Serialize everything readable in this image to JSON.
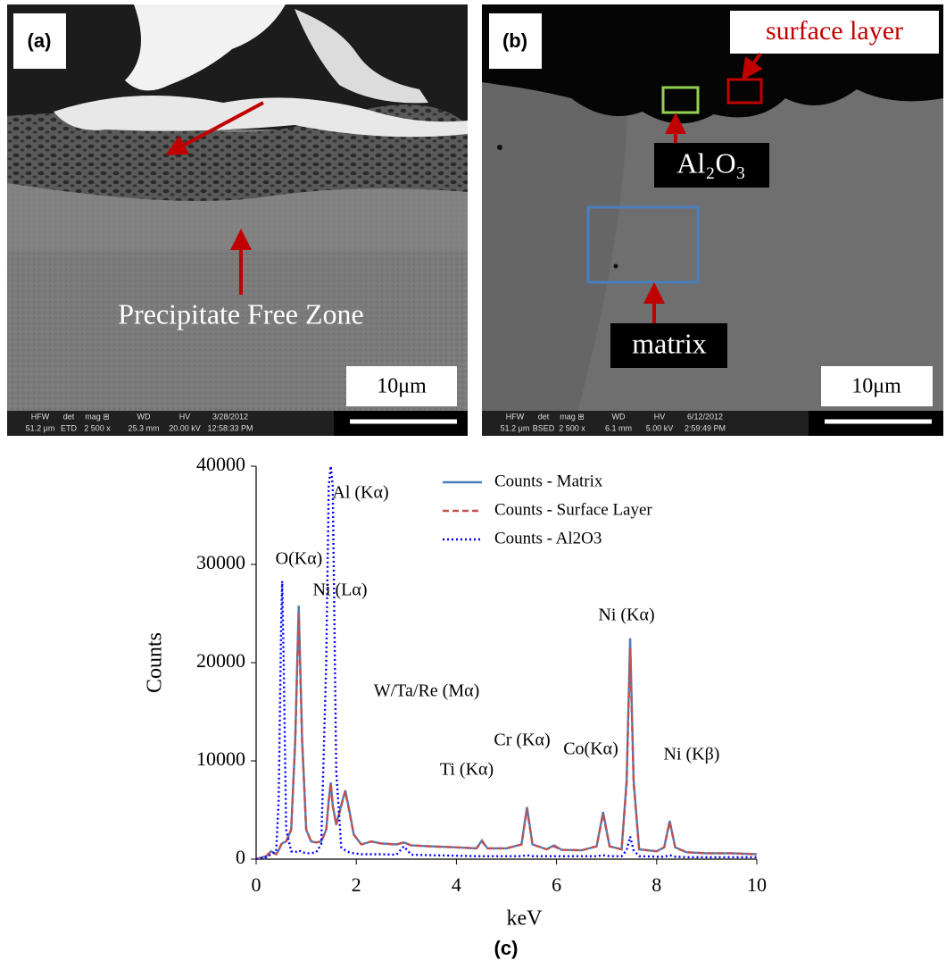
{
  "panels": [
    {
      "label": "(a)",
      "annotations": [
        "Precipitate Free Zone"
      ],
      "scale_bar": "10μm",
      "info_bar": {
        "headers": [
          "HFW",
          "det",
          "mag ⊞",
          "WD",
          "HV",
          "3/28/2012"
        ],
        "values": [
          "51.2 μm",
          "ETD",
          "2 500 x",
          "25.3 mm",
          "20.00 kV",
          "12:58:33 PM"
        ]
      }
    },
    {
      "label": "(b)",
      "annotations": [
        "surface layer",
        "Al₂O₃",
        "matrix"
      ],
      "scale_bar": "10μm",
      "info_bar": {
        "headers": [
          "HFW",
          "det",
          "mag ⊞",
          "WD",
          "HV",
          "6/12/2012"
        ],
        "values": [
          "51.2 μm",
          "BSED",
          "2 500 x",
          "6.1 mm",
          "5.00 kV",
          "2:59:49 PM"
        ]
      }
    }
  ],
  "chart_data": {
    "type": "line",
    "x_label": "keV",
    "y_label": "Counts",
    "xlim": [
      0,
      10
    ],
    "xticks": [
      0,
      2,
      4,
      6,
      8,
      10
    ],
    "ylim": [
      0,
      40000
    ],
    "yticks": [
      0,
      10000,
      20000,
      30000,
      40000
    ],
    "legend": "top-right",
    "annotations": [
      "O(Kα)",
      "Al (Kα)",
      "Ni (Lα)",
      "W/Ta/Re  (Mα)",
      "Ti (Kα)",
      "Cr (Kα)",
      "Co(Kα)",
      "Ni (Kα)",
      "Ni (Kβ)"
    ],
    "x": [
      0,
      0.2,
      0.3,
      0.4,
      0.45,
      0.5,
      0.52,
      0.55,
      0.6,
      0.7,
      0.78,
      0.85,
      0.92,
      1.0,
      1.1,
      1.2,
      1.3,
      1.4,
      1.45,
      1.49,
      1.53,
      1.6,
      1.7,
      1.78,
      1.86,
      1.95,
      2.1,
      2.3,
      2.5,
      2.8,
      2.95,
      3.1,
      3.5,
      4.0,
      4.4,
      4.51,
      4.62,
      5.0,
      5.3,
      5.41,
      5.52,
      5.8,
      5.95,
      6.1,
      6.5,
      6.8,
      6.93,
      7.06,
      7.3,
      7.4,
      7.47,
      7.54,
      7.65,
      8.0,
      8.15,
      8.26,
      8.37,
      8.6,
      9.0,
      9.5,
      10
    ],
    "series": [
      {
        "name": "Counts - Matrix",
        "color": "#4a7ebb",
        "dash": "solid",
        "values": [
          0,
          300,
          800,
          500,
          900,
          1500,
          1600,
          1700,
          1800,
          3000,
          12000,
          25800,
          12000,
          3000,
          1800,
          1700,
          1800,
          3000,
          6000,
          7800,
          5500,
          3500,
          5500,
          7000,
          5000,
          2500,
          1500,
          1800,
          1600,
          1500,
          1700,
          1400,
          1300,
          1200,
          1100,
          1900,
          1100,
          1100,
          1500,
          5300,
          1500,
          1000,
          1400,
          950,
          900,
          1300,
          4800,
          1300,
          1000,
          8000,
          22500,
          8000,
          1000,
          800,
          1200,
          3900,
          1200,
          700,
          600,
          600,
          500
        ]
      },
      {
        "name": "Counts - Surface Layer",
        "color": "#c0504d",
        "dash": "dashed",
        "values": [
          0,
          300,
          800,
          500,
          900,
          1500,
          1600,
          1700,
          1800,
          3000,
          11800,
          25000,
          11800,
          3000,
          1800,
          1700,
          1800,
          3000,
          5900,
          7700,
          5400,
          3500,
          5400,
          6900,
          4900,
          2500,
          1500,
          1800,
          1600,
          1500,
          1700,
          1400,
          1300,
          1200,
          1100,
          1800,
          1100,
          1100,
          1500,
          5100,
          1500,
          1000,
          1300,
          950,
          900,
          1300,
          4600,
          1300,
          1000,
          7700,
          21500,
          7700,
          1000,
          800,
          1200,
          3800,
          1200,
          700,
          600,
          600,
          500
        ]
      },
      {
        "name": "Counts - Al2O3",
        "color": "#0000ff",
        "dash": "dotted",
        "values": [
          0,
          200,
          500,
          800,
          6000,
          24000,
          28300,
          20000,
          3000,
          800,
          700,
          900,
          700,
          600,
          600,
          700,
          1500,
          20000,
          38000,
          40000,
          38000,
          9000,
          1200,
          900,
          700,
          600,
          500,
          500,
          500,
          450,
          1300,
          450,
          400,
          350,
          300,
          300,
          300,
          300,
          300,
          400,
          300,
          300,
          300,
          300,
          300,
          300,
          400,
          300,
          300,
          900,
          2300,
          900,
          300,
          250,
          250,
          400,
          250,
          200,
          200,
          200,
          200
        ]
      }
    ]
  },
  "caption": "(c)"
}
